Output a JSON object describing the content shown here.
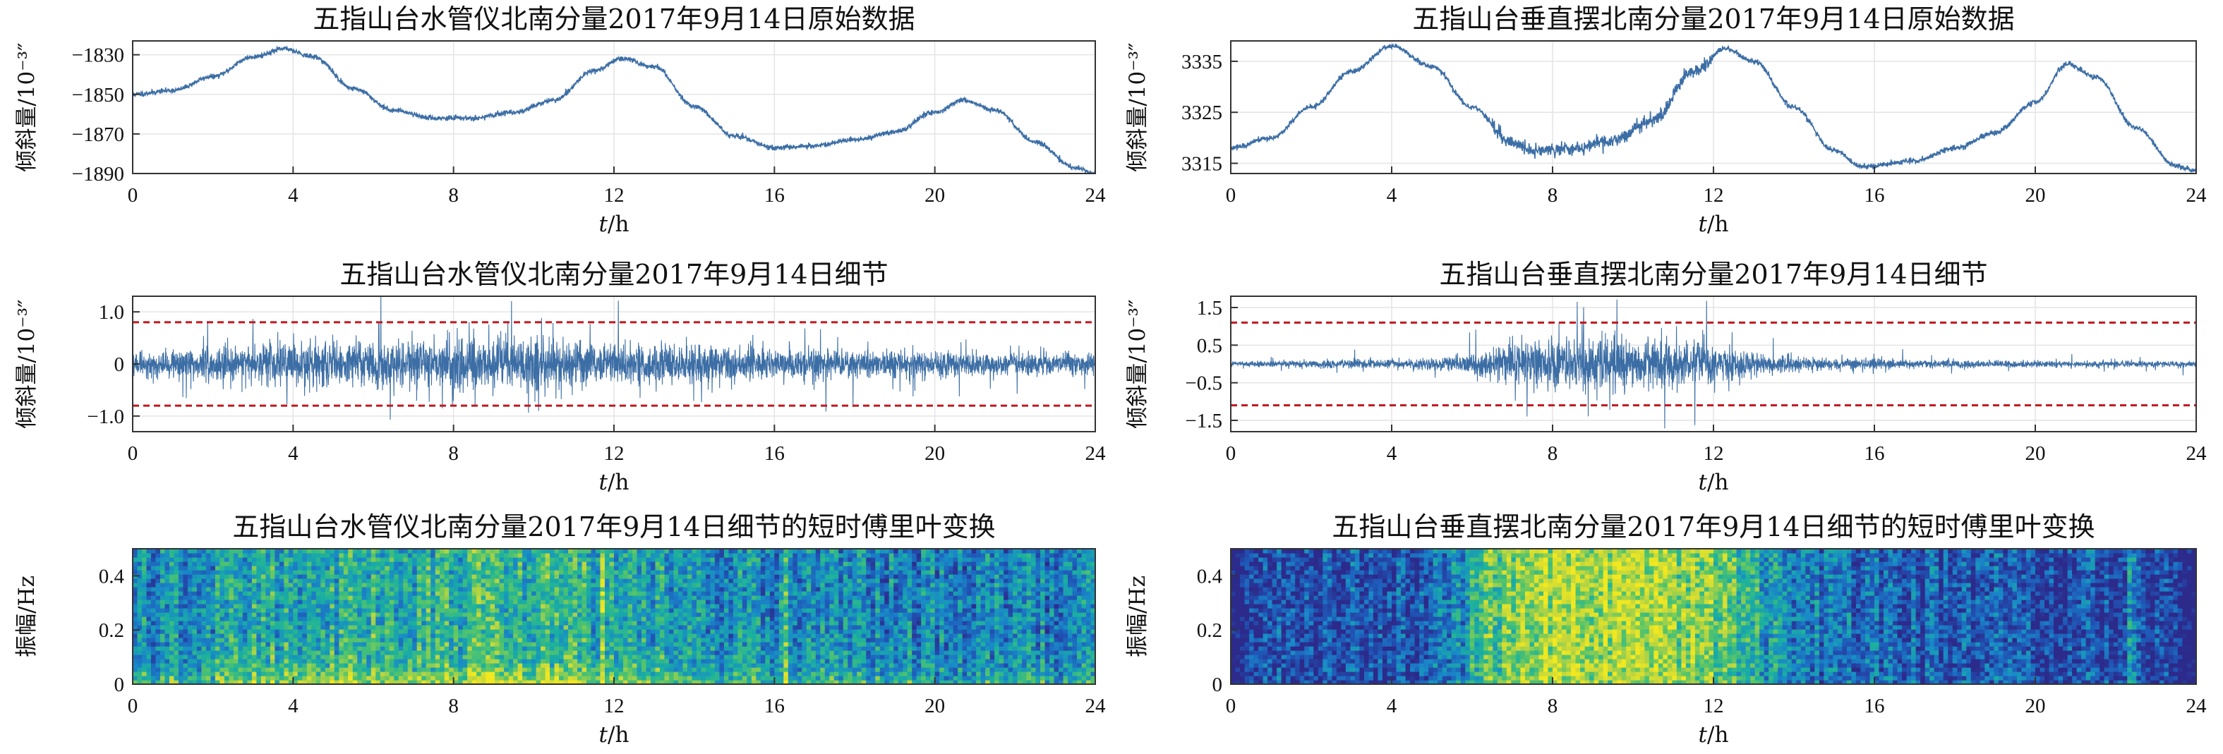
{
  "chart_data": [
    {
      "id": "p1",
      "type": "line",
      "title": "五指山台水管仪北南分量2017年9月14日原始数据",
      "xlabel_italic": "t",
      "xlabel_rest": "/h",
      "ylabel": "倾斜量/10⁻³″",
      "xlim": [
        0,
        24
      ],
      "ylim": [
        -1890,
        -1823
      ],
      "xticks": [
        0,
        4,
        8,
        12,
        16,
        20,
        24
      ],
      "yticks": [
        -1830,
        -1850,
        -1870,
        -1890
      ],
      "color": "#3c6ea5",
      "noise": 0.6,
      "x": [
        0,
        1,
        2,
        3,
        3.8,
        4.5,
        5.5,
        6.5,
        7.5,
        8.5,
        9.5,
        10.5,
        11.5,
        12.2,
        13,
        14,
        15,
        16,
        17,
        18,
        19,
        20,
        20.7,
        21.5,
        22.5,
        23.5,
        24
      ],
      "y": [
        -1850,
        -1848,
        -1841,
        -1831,
        -1827,
        -1831,
        -1847,
        -1858,
        -1862,
        -1862,
        -1859,
        -1853,
        -1838,
        -1832,
        -1836,
        -1856,
        -1871,
        -1877,
        -1876,
        -1873,
        -1869,
        -1859,
        -1853,
        -1858,
        -1874,
        -1887,
        -1890
      ]
    },
    {
      "id": "p2",
      "type": "line",
      "title": "五指山台垂直摆北南分量2017年9月14日原始数据",
      "xlabel_italic": "t",
      "xlabel_rest": "/h",
      "ylabel": "倾斜量/10⁻³″",
      "xlim": [
        0,
        24
      ],
      "ylim": [
        3313,
        3339
      ],
      "xticks": [
        0,
        4,
        8,
        12,
        16,
        20,
        24
      ],
      "yticks": [
        3335,
        3325,
        3315
      ],
      "color": "#3c6ea5",
      "noise": 0.25,
      "x": [
        0,
        1,
        2,
        3,
        4,
        5,
        6,
        7,
        7.5,
        8.5,
        9.5,
        10.5,
        11.5,
        12.3,
        13,
        14,
        15,
        15.7,
        17,
        18,
        19,
        20,
        20.8,
        21.5,
        22.5,
        23.5,
        24
      ],
      "y": [
        3318,
        3320,
        3326,
        3333,
        3338,
        3334,
        3326,
        3319,
        3317.5,
        3317.8,
        3319.5,
        3323.5,
        3333,
        3337.5,
        3335,
        3326,
        3317.5,
        3314.3,
        3315.5,
        3318,
        3321,
        3327,
        3334.5,
        3332,
        3322,
        3314.5,
        3313.5
      ]
    },
    {
      "id": "p3",
      "type": "line",
      "title": "五指山台水管仪北南分量2017年9月14日细节",
      "xlabel_italic": "t",
      "xlabel_rest": "/h",
      "ylabel": "倾斜量/10⁻³″",
      "xlim": [
        0,
        24
      ],
      "ylim": [
        -1.3,
        1.3
      ],
      "xticks": [
        0,
        4,
        8,
        12,
        16,
        20,
        24
      ],
      "yticks": [
        1.0,
        0,
        -1.0
      ],
      "ytick_labels": [
        "1.0",
        "0",
        "−1.0"
      ],
      "thresholds": [
        0.8,
        -0.8
      ],
      "threshold_color": "#c0171e",
      "color": "#3c6ea5",
      "envelope": {
        "x": [
          0,
          2,
          4,
          6,
          8,
          10,
          11,
          12,
          14,
          16,
          18,
          20,
          22,
          24
        ],
        "amp": [
          0.2,
          0.28,
          0.36,
          0.4,
          0.44,
          0.46,
          0.42,
          0.36,
          0.32,
          0.26,
          0.24,
          0.22,
          0.2,
          0.18
        ]
      }
    },
    {
      "id": "p4",
      "type": "line",
      "title": "五指山台垂直摆北南分量2017年9月14日细节",
      "xlabel_italic": "t",
      "xlabel_rest": "/h",
      "ylabel": "倾斜量/10⁻³″",
      "xlim": [
        0,
        24
      ],
      "ylim": [
        -1.8,
        1.8
      ],
      "xticks": [
        0,
        4,
        8,
        12,
        16,
        20,
        24
      ],
      "yticks": [
        1.5,
        0.5,
        -0.5,
        -1.5
      ],
      "ytick_labels": [
        "1.5",
        "0.5",
        "−0.5",
        "−1.5"
      ],
      "thresholds": [
        1.1,
        -1.1
      ],
      "threshold_color": "#c0171e",
      "color": "#3c6ea5",
      "envelope": {
        "x": [
          0,
          4,
          5.5,
          6.5,
          7.5,
          8.5,
          9.5,
          10.5,
          11.5,
          12.5,
          13.5,
          15,
          17,
          20,
          24
        ],
        "amp": [
          0.07,
          0.1,
          0.18,
          0.36,
          0.55,
          0.65,
          0.68,
          0.62,
          0.5,
          0.36,
          0.24,
          0.14,
          0.1,
          0.08,
          0.07
        ]
      }
    },
    {
      "id": "p5",
      "type": "heatmap",
      "title": "五指山台水管仪北南分量2017年9月14日细节的短时傅里叶变换",
      "xlabel_italic": "t",
      "xlabel_rest": "/h",
      "ylabel": "振幅/Hz",
      "xlim": [
        0,
        24
      ],
      "ylim": [
        0,
        0.5
      ],
      "xticks": [
        0,
        4,
        8,
        12,
        16,
        20,
        24
      ],
      "yticks": [
        0,
        0.2,
        0.4
      ],
      "ytick_labels": [
        "0",
        "0.2",
        "0.4"
      ],
      "colormap": [
        "#2c2a8a",
        "#1f58b8",
        "#1989c8",
        "#1ab0a0",
        "#55c46a",
        "#c8d83a",
        "#f2e81f"
      ],
      "intensity": {
        "x": [
          0,
          2,
          4,
          6,
          8,
          10,
          11,
          12,
          14,
          16,
          18,
          20,
          22,
          24
        ],
        "level": [
          0.45,
          0.55,
          0.62,
          0.66,
          0.7,
          0.72,
          0.68,
          0.6,
          0.52,
          0.48,
          0.44,
          0.42,
          0.4,
          0.4
        ]
      }
    },
    {
      "id": "p6",
      "type": "heatmap",
      "title": "五指山台垂直摆北南分量2017年9月14日细节的短时傅里叶变换",
      "xlabel_italic": "t",
      "xlabel_rest": "/h",
      "ylabel": "振幅/Hz",
      "xlim": [
        0,
        24
      ],
      "ylim": [
        0,
        0.5
      ],
      "xticks": [
        0,
        4,
        8,
        12,
        16,
        20,
        24
      ],
      "yticks": [
        0,
        0.2,
        0.4
      ],
      "ytick_labels": [
        "0",
        "0.2",
        "0.4"
      ],
      "colormap": [
        "#2c2a8a",
        "#1f58b8",
        "#1989c8",
        "#1ab0a0",
        "#55c46a",
        "#c8d83a",
        "#f2e81f"
      ],
      "intensity": {
        "x": [
          0,
          4,
          5.5,
          6.5,
          7.5,
          8.5,
          9.5,
          10.5,
          11.5,
          12.5,
          13.5,
          15,
          18,
          24
        ],
        "level": [
          0.1,
          0.14,
          0.3,
          0.68,
          0.8,
          0.84,
          0.84,
          0.8,
          0.74,
          0.62,
          0.38,
          0.22,
          0.15,
          0.1
        ]
      }
    }
  ]
}
